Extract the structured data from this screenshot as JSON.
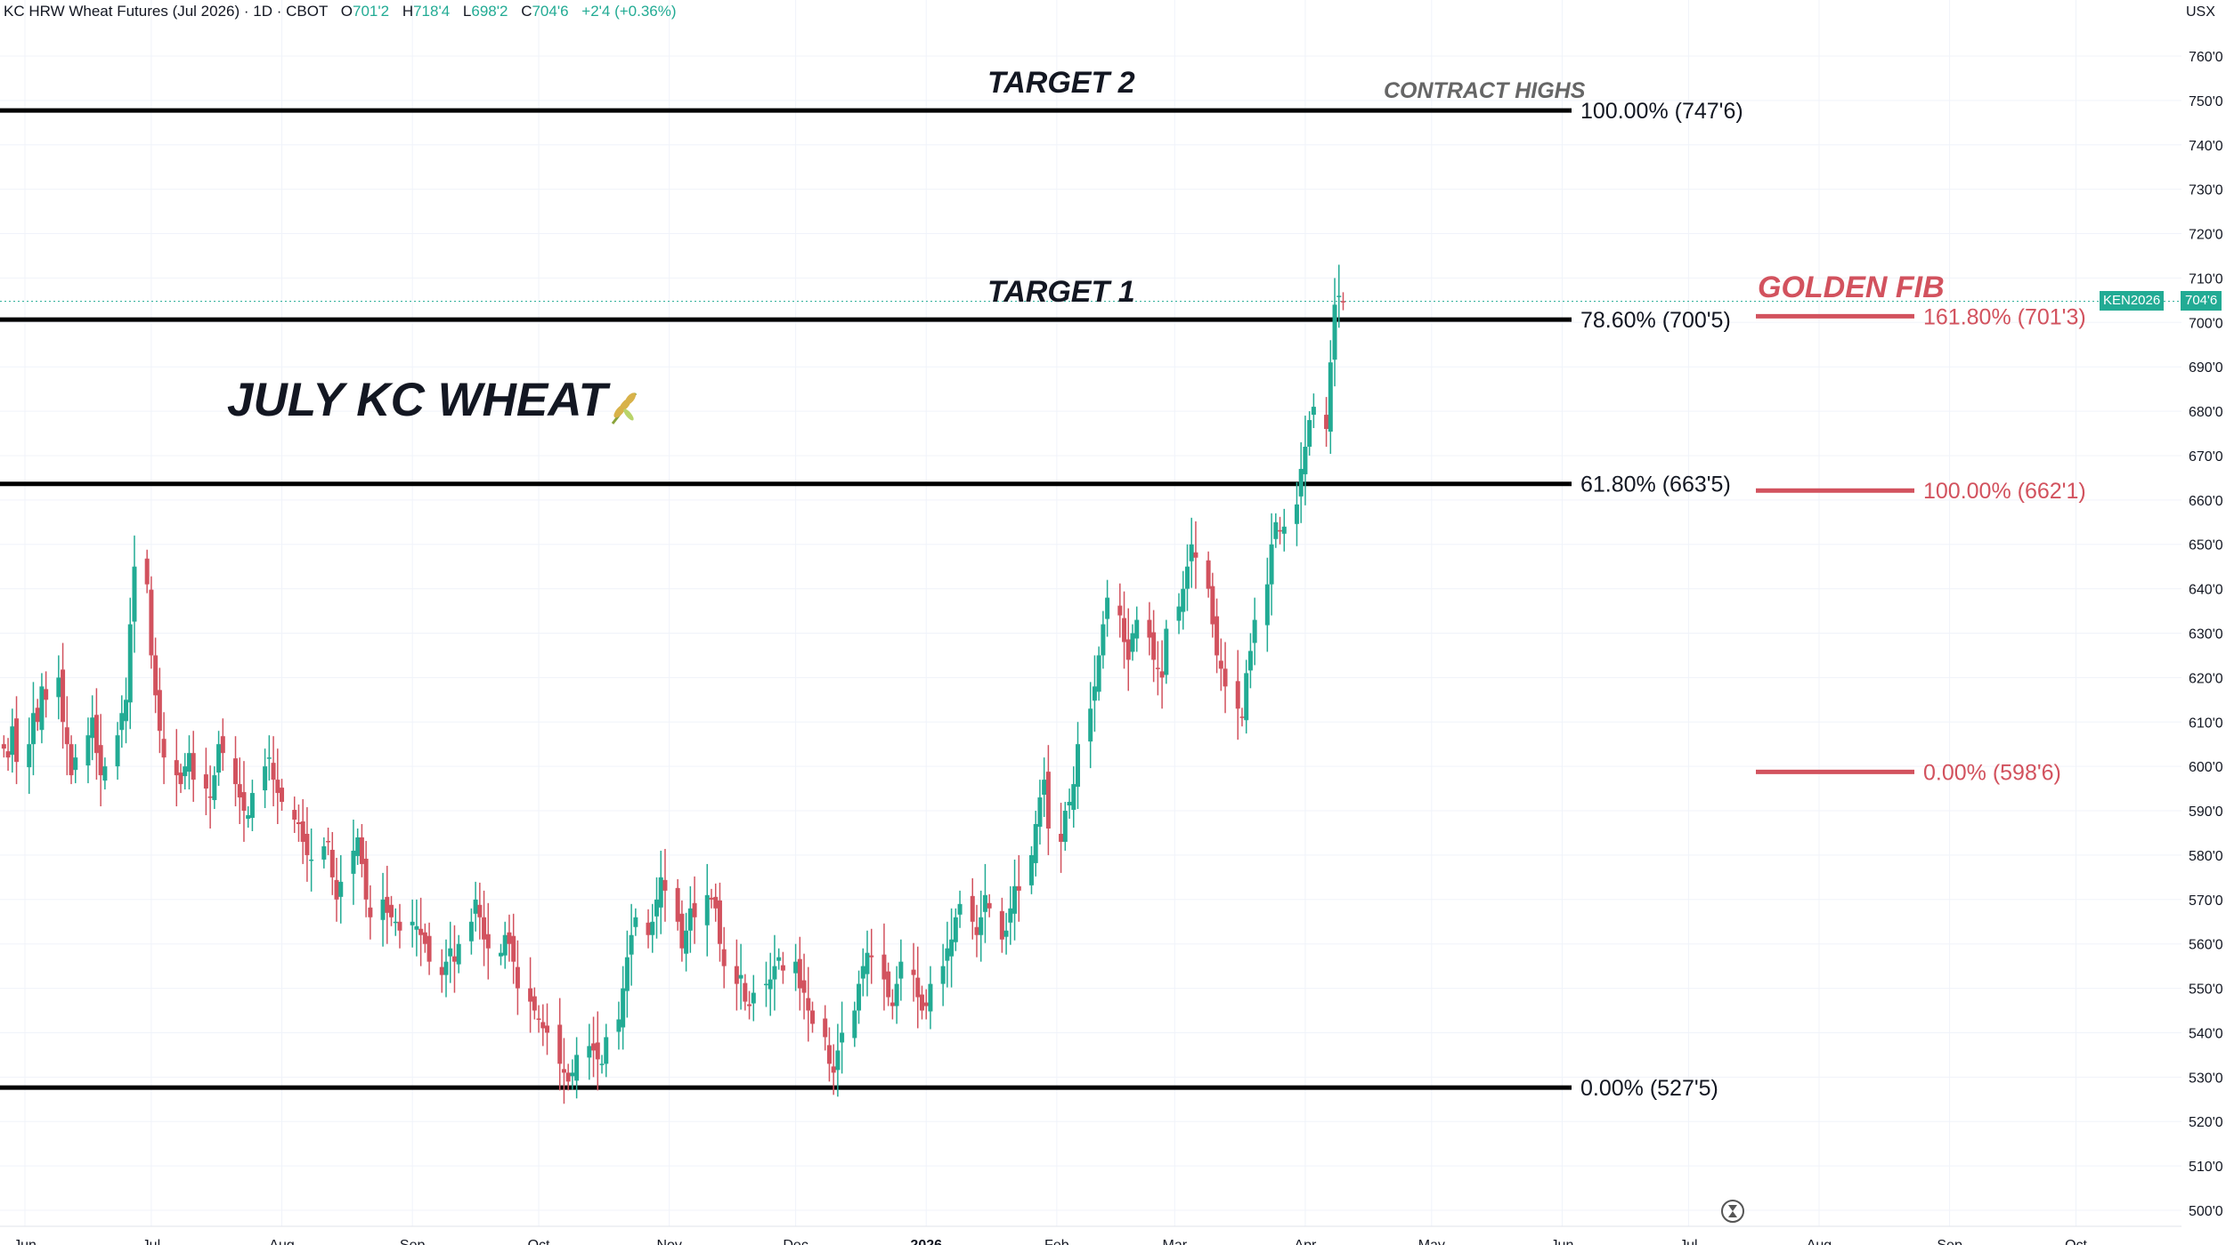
{
  "header": {
    "symbol": "KC HRW Wheat Futures (Jul 2026) · 1D · CBOT",
    "open_label": "O",
    "open": "701'2",
    "high_label": "H",
    "high": "718'4",
    "low_label": "L",
    "low": "698'2",
    "close_label": "C",
    "close": "704'6",
    "change": "+2'4 (+0.36%)"
  },
  "axis": {
    "unit": "USX"
  },
  "badges": {
    "ticker": "KEN2026",
    "price": "704'6"
  },
  "annotations": {
    "title": "JULY KC WHEAT",
    "target2": "TARGET 2",
    "target1": "TARGET 1",
    "contract_highs": "CONTRACT HIGHS",
    "golden_fib": "GOLDEN FIB"
  },
  "colors": {
    "up": "#22ab94",
    "down": "#d2525e",
    "fib": "#d2525e",
    "level": "#000000"
  },
  "chart_data": {
    "type": "candlestick",
    "ylim": [
      497,
      767
    ],
    "y_ticks": [
      "500'0",
      "510'0",
      "520'0",
      "530'0",
      "540'0",
      "550'0",
      "560'0",
      "570'0",
      "580'0",
      "590'0",
      "600'0",
      "610'0",
      "620'0",
      "630'0",
      "640'0",
      "650'0",
      "660'0",
      "670'0",
      "680'0",
      "690'0",
      "700'0",
      "710'0",
      "720'0",
      "730'0",
      "740'0",
      "750'0",
      "760'0"
    ],
    "y_tick_values": [
      500,
      510,
      520,
      530,
      540,
      550,
      560,
      570,
      580,
      590,
      600,
      610,
      620,
      630,
      640,
      650,
      660,
      670,
      680,
      690,
      700,
      710,
      720,
      730,
      740,
      750,
      760
    ],
    "x_ticks": [
      "Jun",
      "Jul",
      "Aug",
      "Sep",
      "Oct",
      "Nov",
      "Dec",
      "2026",
      "Feb",
      "Mar",
      "Apr",
      "May",
      "Jun",
      "Jul",
      "Aug",
      "Sep",
      "Oct"
    ],
    "x_tick_dates": [
      "2025-06-01",
      "2025-07-01",
      "2025-08-01",
      "2025-09-01",
      "2025-10-01",
      "2025-11-01",
      "2025-12-01",
      "2026-01-01",
      "2026-02-01",
      "2026-03-01",
      "2026-04-01",
      "2026-05-01",
      "2026-06-01",
      "2026-07-01",
      "2026-08-01",
      "2026-09-01",
      "2026-10-01"
    ],
    "last_price": 704.75,
    "levels": [
      {
        "label": "100.00% (747'6)",
        "value": 747.75
      },
      {
        "label": "78.60% (700'5)",
        "value": 700.63
      },
      {
        "label": "61.80% (663'5)",
        "value": 663.63
      },
      {
        "label": "0.00% (527'5)",
        "value": 527.63
      }
    ],
    "fib_extension": [
      {
        "label": "161.80% (701'3)",
        "value": 701.38
      },
      {
        "label": "100.00% (662'1)",
        "value": 662.13
      },
      {
        "label": "0.00% (598'6)",
        "value": 598.75
      }
    ],
    "series": {
      "start_date": "2025-05-27",
      "closes": [
        604,
        602,
        609,
        601,
        605,
        612,
        610,
        618,
        615,
        620,
        610,
        605,
        598,
        602,
        607,
        611,
        603,
        598,
        600,
        607,
        612,
        615,
        632,
        645,
        641,
        625,
        616,
        608,
        602,
        598,
        596,
        600,
        603,
        597,
        595,
        593,
        598,
        605,
        603,
        596,
        593,
        590,
        589,
        594,
        600,
        602,
        597,
        594,
        592,
        588,
        587,
        583,
        580,
        579,
        582,
        583,
        575,
        570,
        574,
        581,
        584,
        578,
        570,
        566,
        570,
        567,
        566,
        565,
        563,
        565,
        564,
        562,
        560,
        556,
        553,
        556,
        559,
        556,
        560,
        565,
        570,
        566,
        561,
        559,
        558,
        562,
        560,
        556,
        550,
        547,
        545,
        543,
        541,
        540,
        533,
        531,
        529,
        531,
        535,
        537,
        536,
        534,
        533,
        539,
        543,
        550,
        557,
        562,
        566,
        562,
        565,
        570,
        575,
        572,
        565,
        559,
        563,
        568,
        566,
        571,
        570,
        568,
        560,
        555,
        551,
        553,
        547,
        546,
        549,
        551,
        552,
        555,
        557,
        554,
        556,
        550,
        549,
        545,
        542,
        539,
        533,
        531,
        536,
        540,
        545,
        551,
        555,
        558,
        557,
        552,
        548,
        546,
        551,
        556,
        553,
        548,
        545,
        546,
        551,
        555,
        559,
        561,
        566,
        569,
        565,
        562,
        566,
        571,
        568,
        561,
        563,
        568,
        573,
        572,
        580,
        587,
        593,
        597,
        586,
        583,
        590,
        592,
        596,
        605,
        613,
        618,
        625,
        632,
        638,
        634,
        628,
        624,
        630,
        633,
        629,
        624,
        622,
        620,
        631,
        636,
        640,
        645,
        650,
        647,
        640,
        632,
        625,
        622,
        618,
        613,
        611,
        621,
        626,
        633,
        641,
        650,
        655,
        653,
        654,
        659,
        667,
        672,
        678,
        681,
        676,
        691,
        704,
        706,
        704.75
      ]
    }
  }
}
